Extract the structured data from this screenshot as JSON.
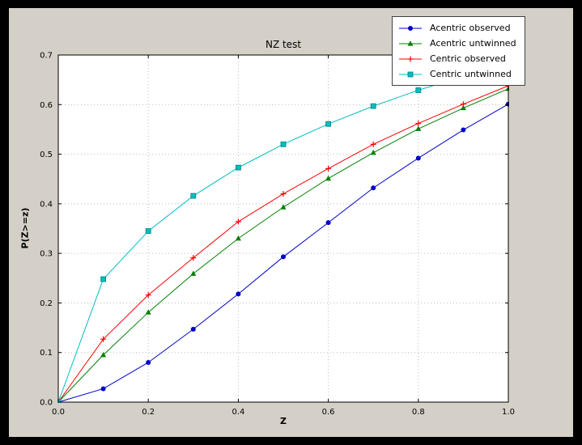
{
  "figure": {
    "background": "#d4d0c8",
    "plot_background": "#ffffff",
    "frame_color": "#000000",
    "grid_color": "#bbbbbb"
  },
  "chart_data": {
    "type": "line",
    "title": "NZ test",
    "xlabel": "Z",
    "ylabel": "P(Z>=z)",
    "xlim": [
      0.0,
      1.0
    ],
    "ylim": [
      0.0,
      0.7
    ],
    "xticks": [
      0.0,
      0.2,
      0.4,
      0.6,
      0.8,
      1.0
    ],
    "yticks": [
      0.0,
      0.1,
      0.2,
      0.3,
      0.4,
      0.5,
      0.6,
      0.7
    ],
    "grid": true,
    "legend_position": "top-right",
    "x": [
      0.0,
      0.1,
      0.2,
      0.3,
      0.4,
      0.5,
      0.6,
      0.7,
      0.8,
      0.9,
      1.0
    ],
    "series": [
      {
        "name": "Acentric observed",
        "color": "#0000cc",
        "marker": "circle",
        "values": [
          0.0,
          0.027,
          0.08,
          0.147,
          0.218,
          0.293,
          0.362,
          0.432,
          0.492,
          0.549,
          0.601
        ]
      },
      {
        "name": "Acentric untwinned",
        "color": "#008000",
        "marker": "triangle",
        "values": [
          0.0,
          0.095,
          0.181,
          0.259,
          0.33,
          0.393,
          0.451,
          0.503,
          0.551,
          0.593,
          0.632
        ]
      },
      {
        "name": "Centric observed",
        "color": "#ff0000",
        "marker": "plus",
        "values": [
          0.0,
          0.127,
          0.216,
          0.291,
          0.364,
          0.42,
          0.471,
          0.52,
          0.562,
          0.601,
          0.638
        ]
      },
      {
        "name": "Centric untwinned",
        "color": "#00bfbf",
        "marker": "square",
        "values": [
          0.0,
          0.248,
          0.345,
          0.416,
          0.473,
          0.52,
          0.561,
          0.597,
          0.629,
          0.657,
          0.683
        ]
      }
    ]
  }
}
